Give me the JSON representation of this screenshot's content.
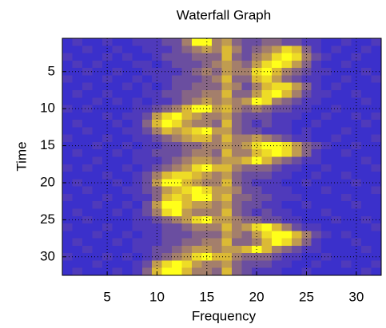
{
  "chart_data": {
    "type": "heatmap",
    "title": "Waterfall Graph",
    "xlabel": "Frequency",
    "ylabel": "Time",
    "x": [
      1,
      2,
      3,
      4,
      5,
      6,
      7,
      8,
      9,
      10,
      11,
      12,
      13,
      14,
      15,
      16,
      17,
      18,
      19,
      20,
      21,
      22,
      23,
      24,
      25,
      26,
      27,
      28,
      29,
      30,
      31,
      32
    ],
    "y": [
      1,
      2,
      3,
      4,
      5,
      6,
      7,
      8,
      9,
      10,
      11,
      12,
      13,
      14,
      15,
      16,
      17,
      18,
      19,
      20,
      21,
      22,
      23,
      24,
      25,
      26,
      27,
      28,
      29,
      30,
      31,
      32
    ],
    "xlim": [
      0.5,
      32.5
    ],
    "ylim": [
      0.5,
      32.5
    ],
    "y_reversed": true,
    "xticks": [
      5,
      10,
      15,
      20,
      25,
      30
    ],
    "yticks": [
      5,
      10,
      15,
      20,
      25,
      30
    ],
    "grid": true,
    "clim": [
      0,
      9
    ],
    "colormap": [
      "#2828d8",
      "#4a36c0",
      "#7a5a90",
      "#b08a60",
      "#e0c030",
      "#ffff1a"
    ],
    "z": [
      [
        1,
        2,
        1,
        1,
        2,
        1,
        1,
        2,
        2,
        2,
        3,
        3,
        5,
        9,
        9,
        5,
        6,
        4,
        3,
        3,
        4,
        4,
        3,
        3,
        2,
        2,
        1,
        1,
        2,
        1,
        1,
        2
      ],
      [
        1,
        1,
        2,
        1,
        1,
        2,
        1,
        1,
        2,
        2,
        2,
        3,
        4,
        5,
        6,
        5,
        7,
        5,
        3,
        4,
        5,
        6,
        8,
        7,
        4,
        2,
        1,
        2,
        1,
        1,
        2,
        1
      ],
      [
        2,
        1,
        1,
        1,
        2,
        1,
        2,
        1,
        1,
        2,
        3,
        3,
        3,
        4,
        4,
        4,
        7,
        4,
        3,
        5,
        6,
        8,
        9,
        8,
        5,
        3,
        2,
        1,
        1,
        2,
        1,
        1
      ],
      [
        1,
        2,
        1,
        2,
        1,
        1,
        1,
        2,
        2,
        1,
        2,
        3,
        3,
        3,
        4,
        5,
        6,
        5,
        4,
        6,
        8,
        9,
        8,
        6,
        4,
        2,
        1,
        1,
        2,
        1,
        1,
        1
      ],
      [
        1,
        1,
        2,
        1,
        1,
        2,
        1,
        1,
        2,
        2,
        2,
        2,
        3,
        4,
        5,
        4,
        6,
        5,
        5,
        8,
        9,
        7,
        5,
        4,
        3,
        2,
        2,
        1,
        1,
        1,
        2,
        1
      ],
      [
        2,
        1,
        1,
        1,
        2,
        1,
        1,
        2,
        1,
        2,
        2,
        3,
        3,
        3,
        4,
        5,
        7,
        4,
        4,
        7,
        8,
        6,
        4,
        3,
        2,
        2,
        1,
        1,
        2,
        1,
        1,
        2
      ],
      [
        1,
        1,
        2,
        1,
        1,
        1,
        2,
        1,
        2,
        1,
        2,
        3,
        3,
        4,
        4,
        4,
        6,
        5,
        3,
        5,
        7,
        8,
        8,
        6,
        4,
        2,
        1,
        2,
        1,
        1,
        1,
        1
      ],
      [
        1,
        2,
        1,
        1,
        2,
        1,
        1,
        1,
        2,
        2,
        3,
        3,
        4,
        4,
        5,
        5,
        7,
        4,
        4,
        6,
        8,
        9,
        7,
        5,
        3,
        2,
        2,
        1,
        1,
        2,
        1,
        1
      ],
      [
        1,
        1,
        1,
        2,
        1,
        2,
        1,
        2,
        1,
        2,
        2,
        3,
        4,
        5,
        6,
        5,
        6,
        5,
        6,
        9,
        8,
        5,
        4,
        3,
        2,
        2,
        1,
        1,
        1,
        1,
        2,
        1
      ],
      [
        2,
        1,
        2,
        1,
        1,
        1,
        1,
        2,
        2,
        3,
        4,
        5,
        7,
        9,
        9,
        6,
        7,
        5,
        4,
        5,
        4,
        3,
        3,
        2,
        2,
        1,
        1,
        2,
        1,
        1,
        1,
        1
      ],
      [
        1,
        1,
        1,
        1,
        2,
        1,
        2,
        2,
        3,
        6,
        8,
        9,
        7,
        6,
        5,
        5,
        6,
        4,
        3,
        3,
        3,
        2,
        2,
        2,
        1,
        1,
        2,
        1,
        1,
        2,
        1,
        2
      ],
      [
        1,
        2,
        1,
        1,
        1,
        2,
        1,
        2,
        4,
        7,
        9,
        8,
        6,
        5,
        5,
        4,
        7,
        4,
        3,
        2,
        3,
        2,
        2,
        1,
        1,
        2,
        1,
        1,
        1,
        1,
        2,
        1
      ],
      [
        1,
        1,
        2,
        1,
        1,
        1,
        2,
        2,
        3,
        5,
        7,
        6,
        7,
        8,
        9,
        6,
        6,
        4,
        3,
        3,
        2,
        2,
        2,
        1,
        2,
        1,
        1,
        1,
        2,
        1,
        1,
        1
      ],
      [
        2,
        1,
        1,
        1,
        2,
        1,
        1,
        2,
        2,
        3,
        4,
        5,
        6,
        7,
        7,
        5,
        7,
        5,
        5,
        6,
        5,
        4,
        3,
        2,
        2,
        1,
        1,
        2,
        1,
        1,
        1,
        2
      ],
      [
        1,
        1,
        1,
        2,
        1,
        1,
        2,
        1,
        2,
        2,
        3,
        3,
        4,
        4,
        5,
        5,
        6,
        5,
        6,
        8,
        9,
        9,
        8,
        6,
        4,
        3,
        2,
        1,
        1,
        2,
        1,
        1
      ],
      [
        1,
        2,
        1,
        1,
        1,
        2,
        1,
        2,
        2,
        3,
        3,
        3,
        4,
        5,
        5,
        4,
        7,
        5,
        5,
        7,
        8,
        9,
        8,
        6,
        4,
        2,
        1,
        1,
        2,
        1,
        1,
        1
      ],
      [
        1,
        1,
        1,
        2,
        1,
        1,
        1,
        2,
        2,
        2,
        3,
        4,
        5,
        6,
        6,
        5,
        6,
        6,
        7,
        9,
        7,
        5,
        4,
        3,
        2,
        2,
        1,
        1,
        1,
        1,
        2,
        1
      ],
      [
        2,
        1,
        2,
        1,
        1,
        1,
        2,
        1,
        2,
        3,
        4,
        5,
        6,
        8,
        9,
        7,
        7,
        5,
        4,
        4,
        4,
        3,
        2,
        2,
        1,
        1,
        2,
        1,
        1,
        1,
        1,
        2
      ],
      [
        1,
        1,
        1,
        1,
        2,
        1,
        1,
        2,
        3,
        5,
        7,
        8,
        8,
        7,
        6,
        5,
        6,
        4,
        3,
        3,
        3,
        2,
        2,
        1,
        1,
        2,
        1,
        1,
        2,
        1,
        1,
        1
      ],
      [
        1,
        2,
        1,
        1,
        1,
        2,
        1,
        2,
        3,
        6,
        9,
        9,
        7,
        6,
        5,
        5,
        7,
        4,
        3,
        2,
        2,
        2,
        1,
        1,
        2,
        1,
        1,
        1,
        1,
        2,
        1,
        1
      ],
      [
        1,
        1,
        2,
        1,
        1,
        1,
        2,
        2,
        3,
        4,
        6,
        7,
        8,
        9,
        8,
        6,
        6,
        5,
        3,
        3,
        2,
        2,
        2,
        1,
        1,
        1,
        2,
        1,
        1,
        1,
        1,
        2
      ],
      [
        2,
        1,
        1,
        1,
        2,
        1,
        1,
        2,
        2,
        4,
        7,
        8,
        7,
        9,
        9,
        6,
        7,
        4,
        4,
        3,
        3,
        2,
        2,
        2,
        1,
        1,
        1,
        1,
        2,
        1,
        1,
        1
      ],
      [
        1,
        1,
        1,
        2,
        1,
        1,
        2,
        1,
        3,
        6,
        9,
        9,
        7,
        6,
        6,
        5,
        6,
        4,
        3,
        3,
        2,
        2,
        1,
        1,
        2,
        1,
        1,
        1,
        1,
        2,
        1,
        1
      ],
      [
        1,
        2,
        1,
        1,
        1,
        2,
        1,
        2,
        3,
        5,
        8,
        9,
        6,
        5,
        5,
        5,
        7,
        4,
        3,
        2,
        3,
        2,
        2,
        1,
        1,
        1,
        2,
        1,
        1,
        1,
        1,
        1
      ],
      [
        1,
        1,
        2,
        1,
        1,
        1,
        1,
        2,
        2,
        3,
        4,
        5,
        6,
        8,
        9,
        6,
        6,
        5,
        4,
        4,
        3,
        3,
        2,
        2,
        1,
        1,
        1,
        2,
        1,
        1,
        2,
        1
      ],
      [
        2,
        1,
        1,
        1,
        2,
        1,
        1,
        2,
        2,
        2,
        3,
        3,
        4,
        5,
        5,
        5,
        7,
        5,
        6,
        8,
        9,
        7,
        5,
        3,
        2,
        2,
        1,
        1,
        1,
        1,
        1,
        2
      ],
      [
        1,
        1,
        1,
        2,
        1,
        1,
        2,
        1,
        2,
        2,
        3,
        3,
        3,
        4,
        4,
        4,
        6,
        5,
        4,
        6,
        8,
        9,
        9,
        7,
        5,
        3,
        2,
        1,
        2,
        1,
        1,
        1
      ],
      [
        1,
        2,
        1,
        1,
        1,
        2,
        1,
        2,
        2,
        2,
        3,
        3,
        4,
        4,
        5,
        5,
        7,
        4,
        4,
        5,
        7,
        9,
        8,
        6,
        4,
        2,
        1,
        1,
        1,
        2,
        1,
        1
      ],
      [
        1,
        1,
        2,
        1,
        1,
        1,
        1,
        2,
        2,
        3,
        3,
        4,
        5,
        6,
        6,
        5,
        6,
        6,
        7,
        9,
        7,
        5,
        4,
        3,
        2,
        2,
        1,
        1,
        1,
        1,
        2,
        1
      ],
      [
        2,
        1,
        1,
        1,
        2,
        1,
        2,
        1,
        2,
        3,
        4,
        5,
        6,
        8,
        9,
        7,
        7,
        5,
        4,
        4,
        4,
        3,
        2,
        2,
        1,
        1,
        2,
        1,
        1,
        1,
        1,
        1
      ],
      [
        1,
        1,
        1,
        2,
        1,
        1,
        1,
        2,
        3,
        6,
        8,
        9,
        8,
        6,
        5,
        5,
        6,
        4,
        3,
        3,
        3,
        2,
        2,
        1,
        1,
        2,
        1,
        1,
        2,
        1,
        1,
        2
      ],
      [
        1,
        2,
        1,
        1,
        1,
        2,
        1,
        2,
        4,
        7,
        9,
        9,
        7,
        5,
        5,
        4,
        7,
        4,
        3,
        2,
        2,
        2,
        1,
        1,
        2,
        1,
        1,
        1,
        1,
        1,
        2,
        1
      ]
    ]
  }
}
